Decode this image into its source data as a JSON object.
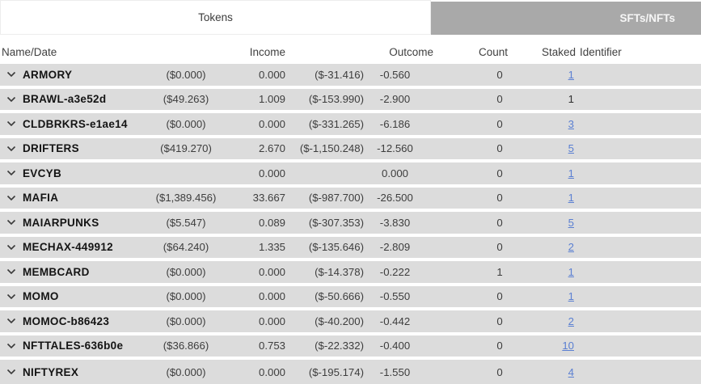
{
  "tabs": {
    "tokens_label": "Tokens",
    "sfts_label": "SFTs/NFTs"
  },
  "header": {
    "name": "Name/Date",
    "income": "Income",
    "outcome": "Outcome",
    "count": "Count",
    "staked": "Staked",
    "identifier": "Identifier"
  },
  "colors": {
    "row_background": "#dcdcdc",
    "inactive_tab_background": "#a9a9a9",
    "link": "#5a7fd2"
  },
  "icons": {
    "row_expander": "chevron-down-icon"
  },
  "rows": [
    {
      "name": "ARMORY",
      "income_usd": "($0.000)",
      "income": "0.000",
      "outcome_usd": "($-31.416)",
      "outcome": "-0.560",
      "count": "0",
      "staked": "1",
      "staked_is_link": true,
      "identifier": ""
    },
    {
      "name": "BRAWL-a3e52d",
      "income_usd": "($49.263)",
      "income": "1.009",
      "outcome_usd": "($-153.990)",
      "outcome": "-2.900",
      "count": "0",
      "staked": "1",
      "staked_is_link": false,
      "identifier": ""
    },
    {
      "name": "CLDBRKRS-e1ae14",
      "income_usd": "($0.000)",
      "income": "0.000",
      "outcome_usd": "($-331.265)",
      "outcome": "-6.186",
      "count": "0",
      "staked": "3",
      "staked_is_link": true,
      "identifier": ""
    },
    {
      "name": "DRIFTERS",
      "income_usd": "($419.270)",
      "income": "2.670",
      "outcome_usd": "($-1,150.248)",
      "outcome": "-12.560",
      "count": "0",
      "staked": "5",
      "staked_is_link": true,
      "identifier": ""
    },
    {
      "name": "EVCYB",
      "income_usd": "",
      "income": "0.000",
      "outcome_usd": "",
      "outcome": "0.000",
      "count": "0",
      "staked": "1",
      "staked_is_link": true,
      "identifier": ""
    },
    {
      "name": "MAFIA",
      "income_usd": "($1,389.456)",
      "income": "33.667",
      "outcome_usd": "($-987.700)",
      "outcome": "-26.500",
      "count": "0",
      "staked": "1",
      "staked_is_link": true,
      "identifier": ""
    },
    {
      "name": "MAIARPUNKS",
      "income_usd": "($5.547)",
      "income": "0.089",
      "outcome_usd": "($-307.353)",
      "outcome": "-3.830",
      "count": "0",
      "staked": "5",
      "staked_is_link": true,
      "identifier": ""
    },
    {
      "name": "MECHAX-449912",
      "income_usd": "($64.240)",
      "income": "1.335",
      "outcome_usd": "($-135.646)",
      "outcome": "-2.809",
      "count": "0",
      "staked": "2",
      "staked_is_link": true,
      "identifier": ""
    },
    {
      "name": "MEMBCARD",
      "income_usd": "($0.000)",
      "income": "0.000",
      "outcome_usd": "($-14.378)",
      "outcome": "-0.222",
      "count": "1",
      "staked": "1",
      "staked_is_link": true,
      "identifier": ""
    },
    {
      "name": "MOMO",
      "income_usd": "($0.000)",
      "income": "0.000",
      "outcome_usd": "($-50.666)",
      "outcome": "-0.550",
      "count": "0",
      "staked": "1",
      "staked_is_link": true,
      "identifier": ""
    },
    {
      "name": "MOMOC-b86423",
      "income_usd": "($0.000)",
      "income": "0.000",
      "outcome_usd": "($-40.200)",
      "outcome": "-0.442",
      "count": "0",
      "staked": "2",
      "staked_is_link": true,
      "identifier": ""
    },
    {
      "name": "NFTTALES-636b0e",
      "income_usd": "($36.866)",
      "income": "0.753",
      "outcome_usd": "($-22.332)",
      "outcome": "-0.400",
      "count": "0",
      "staked": "10",
      "staked_is_link": true,
      "identifier": ""
    },
    {
      "name": "NIFTYREX",
      "income_usd": "($0.000)",
      "income": "0.000",
      "outcome_usd": "($-195.174)",
      "outcome": "-1.550",
      "count": "0",
      "staked": "4",
      "staked_is_link": true,
      "identifier": ""
    }
  ]
}
